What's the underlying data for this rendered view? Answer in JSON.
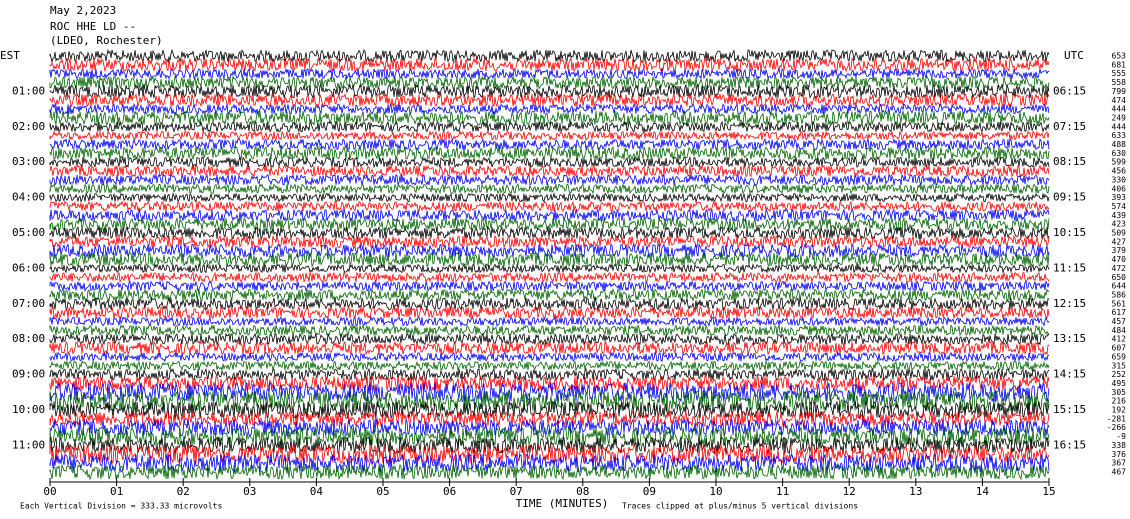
{
  "header": {
    "lines": [
      "May 2,2023",
      "ROC HHE LD --",
      "(LDEO, Rochester)"
    ],
    "left_zone": "EST",
    "right_zone": "UTC"
  },
  "left_labels": [
    "01:00",
    "02:00",
    "03:00",
    "04:00",
    "05:00",
    "06:00",
    "07:00",
    "08:00",
    "09:00",
    "10:00",
    "11:00"
  ],
  "right_labels": [
    "06:15",
    "07:15",
    "08:15",
    "09:15",
    "10:15",
    "11:15",
    "12:15",
    "13:15",
    "14:15",
    "15:15",
    "16:15"
  ],
  "trace_values": [
    "653",
    "681",
    "555",
    "558",
    "799",
    "474",
    "444",
    "249",
    "444",
    "633",
    "488",
    "630",
    "599",
    "456",
    "330",
    "406",
    "393",
    "574",
    "439",
    "423",
    "509",
    "427",
    "379",
    "470",
    "472",
    "650",
    "644",
    "586",
    "561",
    "617",
    "457",
    "484",
    "412",
    "607",
    "659",
    "315",
    "252",
    "495",
    "305",
    "216",
    "192",
    "-281",
    "-266",
    "-9",
    "338",
    "376",
    "367",
    "467"
  ],
  "x_ticks": [
    "00",
    "01",
    "02",
    "03",
    "04",
    "05",
    "06",
    "07",
    "08",
    "09",
    "10",
    "11",
    "12",
    "13",
    "14",
    "15"
  ],
  "footer": {
    "x_label": "TIME (MINUTES)",
    "left_note": "Each Vertical Division =  333.33 microvolts",
    "right_note": "Traces clipped at plus/minus 5 vertical divisions"
  }
}
